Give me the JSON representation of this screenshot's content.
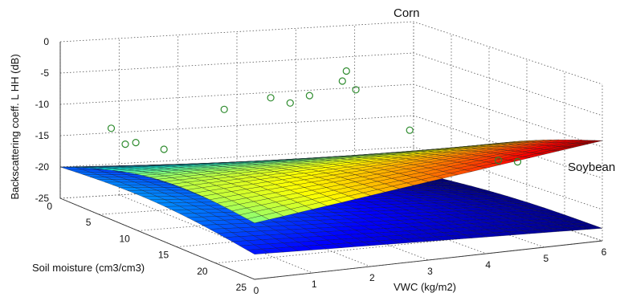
{
  "chart_data": {
    "type": "surface3d",
    "ylabel": "Backscattering coeff. L HH (dB)",
    "xlabel": "Soil moisture (cm3/cm3)",
    "x2label": "VWC (kg/m2)",
    "soil_moisture_ticks": [
      "0",
      "5",
      "10",
      "15",
      "20",
      "25"
    ],
    "vwc_ticks": [
      "0",
      "1",
      "2",
      "3",
      "4",
      "5",
      "6"
    ],
    "backscatter_ticks": [
      "0",
      "-5",
      "-10",
      "-15",
      "-20",
      "-25"
    ],
    "soil_moisture_range": [
      0,
      25
    ],
    "vwc_range": [
      0,
      6
    ],
    "backscatter_range": [
      -25,
      0
    ],
    "grid": true,
    "colormap": "jet",
    "surfaces": [
      {
        "name": "Corn",
        "corners_db": {
          "sm0_vwc0": -20,
          "sm25_vwc0": -16,
          "sm0_vwc6": -22,
          "sm25_vwc6": -9
        }
      },
      {
        "name": "Soybean",
        "corners_db": {
          "sm0_vwc0": -20,
          "sm25_vwc0": -21,
          "sm0_vwc6": -24,
          "sm25_vwc6": -23
        }
      }
    ],
    "observations": [
      {
        "soil_moisture": 0.5,
        "vwc": 0.8,
        "backscatter_db": -14
      },
      {
        "soil_moisture": 0.8,
        "vwc": 1.0,
        "backscatter_db": -16.5
      },
      {
        "soil_moisture": 1.4,
        "vwc": 1.1,
        "backscatter_db": -16
      },
      {
        "soil_moisture": 2.0,
        "vwc": 1.5,
        "backscatter_db": -17
      },
      {
        "soil_moisture": 6.0,
        "vwc": 2.0,
        "backscatter_db": -9
      },
      {
        "soil_moisture": 9.0,
        "vwc": 2.4,
        "backscatter_db": -6
      },
      {
        "soil_moisture": 10.0,
        "vwc": 2.6,
        "backscatter_db": -6.5
      },
      {
        "soil_moisture": 11.0,
        "vwc": 2.8,
        "backscatter_db": -5
      },
      {
        "soil_moisture": 13.0,
        "vwc": 3.1,
        "backscatter_db": -2
      },
      {
        "soil_moisture": 12.0,
        "vwc": 3.3,
        "backscatter_db": -1
      },
      {
        "soil_moisture": 14.0,
        "vwc": 3.2,
        "backscatter_db": -3
      },
      {
        "soil_moisture": 18.0,
        "vwc": 3.6,
        "backscatter_db": -8
      },
      {
        "soil_moisture": 22.0,
        "vwc": 4.6,
        "backscatter_db": -12
      },
      {
        "soil_moisture": 23.0,
        "vwc": 4.8,
        "backscatter_db": -12
      }
    ]
  }
}
